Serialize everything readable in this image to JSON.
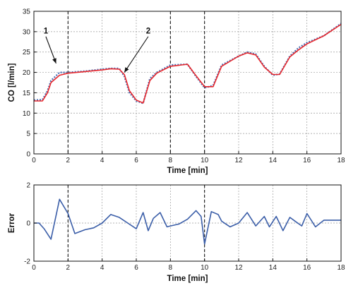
{
  "chart_data": [
    {
      "type": "line",
      "ylabel": "CO [l/min]",
      "xlabel": "Time [min]",
      "xlim": [
        0,
        18
      ],
      "ylim": [
        0,
        35
      ],
      "xticks": [
        0,
        2,
        4,
        6,
        8,
        10,
        12,
        14,
        16,
        18
      ],
      "yticks": [
        0,
        5,
        10,
        15,
        20,
        25,
        30,
        35
      ],
      "grid": true,
      "vlines": [
        2,
        8,
        10
      ],
      "annotations": [
        {
          "label": "1",
          "text_at": [
            0.7,
            29.5
          ],
          "arrow_to": [
            1.3,
            22.2
          ]
        },
        {
          "label": "2",
          "text_at": [
            6.7,
            29.5
          ],
          "arrow_to": [
            5.3,
            20.0
          ]
        }
      ],
      "series": [
        {
          "color": "#4a6fb5",
          "style": "dotted",
          "x": [
            0,
            0.5,
            0.8,
            1.0,
            1.5,
            2.0,
            3.0,
            4.0,
            4.5,
            5.0,
            5.3,
            5.6,
            6.0,
            6.4,
            6.8,
            7.2,
            8.0,
            9.0,
            9.5,
            10.0,
            10.5,
            11.0,
            12.0,
            12.5,
            13.0,
            13.5,
            14.0,
            14.4,
            15.0,
            15.5,
            16.0,
            17.0,
            18.0
          ],
          "y": [
            13.2,
            13.3,
            15.5,
            18.0,
            20.0,
            20.0,
            20.3,
            20.8,
            21.0,
            21.0,
            19.0,
            15.0,
            13.0,
            12.4,
            18.5,
            20.0,
            21.8,
            22.0,
            19.0,
            16.2,
            16.8,
            21.8,
            24.0,
            25.0,
            24.5,
            21.5,
            19.3,
            19.6,
            24.0,
            26.0,
            27.3,
            29.0,
            32.0
          ]
        },
        {
          "color": "#e8262b",
          "style": "solid",
          "x": [
            0,
            0.5,
            0.8,
            1.0,
            1.5,
            2.0,
            3.0,
            4.0,
            4.5,
            5.0,
            5.3,
            5.6,
            6.0,
            6.4,
            6.8,
            7.2,
            8.0,
            9.0,
            9.5,
            10.0,
            10.5,
            11.0,
            12.0,
            12.5,
            13.0,
            13.5,
            14.0,
            14.4,
            15.0,
            15.5,
            16.0,
            17.0,
            18.0
          ],
          "y": [
            13.0,
            13.0,
            15.0,
            17.5,
            19.3,
            19.8,
            20.2,
            20.6,
            20.9,
            20.8,
            19.5,
            15.5,
            13.2,
            12.5,
            18.0,
            19.8,
            21.5,
            22.0,
            19.2,
            16.5,
            16.5,
            21.5,
            24.0,
            24.8,
            24.3,
            21.3,
            19.5,
            19.5,
            23.8,
            25.5,
            27.0,
            29.0,
            31.8
          ]
        }
      ]
    },
    {
      "type": "line",
      "ylabel": "Error",
      "xlabel": "Time [min]",
      "xlim": [
        0,
        18
      ],
      "ylim": [
        -2,
        2
      ],
      "xticks": [
        0,
        2,
        4,
        6,
        8,
        10,
        12,
        14,
        16,
        18
      ],
      "yticks": [
        -2,
        0,
        2
      ],
      "grid": true,
      "vlines": [
        2,
        10
      ],
      "series": [
        {
          "color": "#3b5ea8",
          "style": "solid",
          "x": [
            0,
            0.3,
            0.6,
            1.0,
            1.5,
            2.0,
            2.4,
            3.0,
            3.5,
            4.0,
            4.5,
            5.0,
            5.5,
            6.0,
            6.4,
            6.7,
            7.0,
            7.4,
            7.8,
            8.0,
            8.5,
            9.0,
            9.5,
            9.8,
            10.0,
            10.4,
            10.8,
            11.0,
            11.5,
            12.0,
            12.5,
            13.0,
            13.5,
            13.8,
            14.2,
            14.6,
            15.0,
            15.3,
            15.7,
            16.0,
            16.5,
            17.0,
            17.5,
            18.0
          ],
          "y": [
            0.0,
            0.0,
            -0.3,
            -0.85,
            1.25,
            0.5,
            -0.55,
            -0.35,
            -0.25,
            0.0,
            0.45,
            0.3,
            0.0,
            -0.3,
            0.55,
            -0.4,
            0.25,
            0.55,
            -0.2,
            -0.15,
            -0.05,
            0.2,
            0.65,
            0.35,
            -1.1,
            0.6,
            0.45,
            0.1,
            -0.2,
            0.0,
            0.55,
            -0.15,
            0.35,
            -0.2,
            0.35,
            -0.4,
            0.3,
            0.1,
            -0.15,
            0.5,
            -0.2,
            0.15,
            0.15,
            0.15
          ]
        }
      ]
    }
  ]
}
